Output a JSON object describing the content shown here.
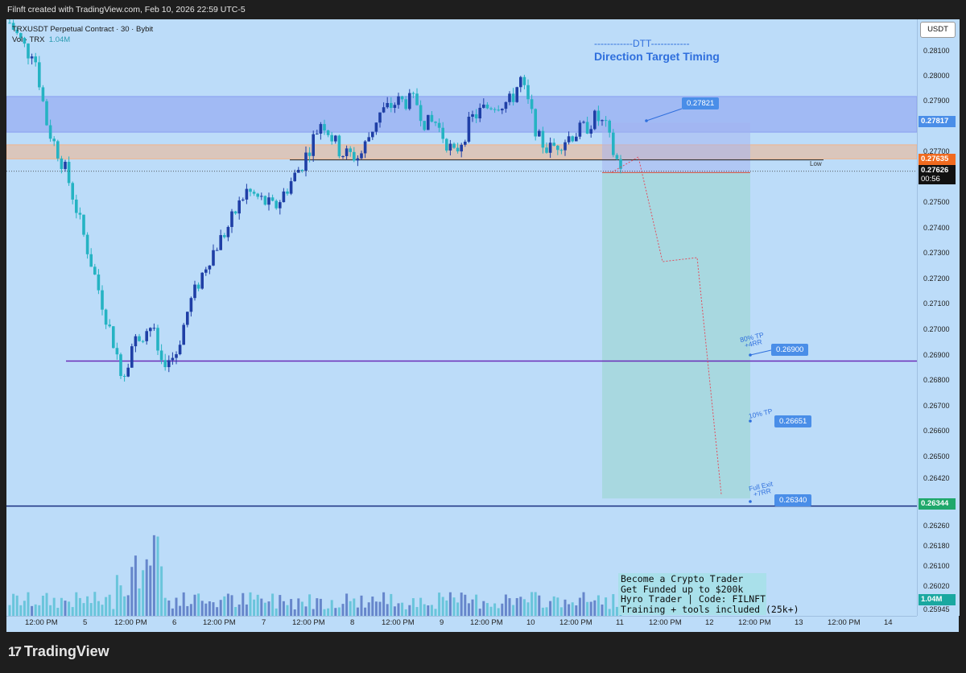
{
  "header": {
    "creator_text": "Filnft created with TradingView.com, Feb 10, 2026 22:59 UTC-5"
  },
  "legend": {
    "symbol_line": "TRXUSDT Perpetual Contract · 30 · Bybit",
    "vol_label": "Vol · TRX",
    "vol_value": "1.04M"
  },
  "dtt": {
    "line1": "------------DTT------------",
    "line2": "Direction Target Timing"
  },
  "promo": {
    "lines": [
      "Become a Crypto Trader",
      "Get Funded up to $200k",
      "Hyro Trader | Code: FILNFT",
      "Training + tools included (25k+)"
    ]
  },
  "annotations": {
    "low": "Low",
    "tp80": "80% TP",
    "tp80_rr": "+4RR",
    "tp10": "10% TP",
    "full_exit": "Full Exit",
    "full_exit_rr": "+7RR"
  },
  "targets": {
    "entry_tag": "0.27821",
    "tp80_tag": "0.26900",
    "tp10_tag": "0.26651",
    "exit_tag": "0.26340"
  },
  "price_axis": {
    "currency_button": "USDT",
    "ticks": [
      "0.28100",
      "0.28000",
      "0.27900",
      "0.27700",
      "0.27500",
      "0.27400",
      "0.27300",
      "0.27200",
      "0.27100",
      "0.27000",
      "0.26900",
      "0.26800",
      "0.26700",
      "0.26600",
      "0.26500",
      "0.26420",
      "0.26260",
      "0.26180",
      "0.26100",
      "0.26020",
      "0.25945"
    ],
    "labels": {
      "p1": "0.27817",
      "p2": "0.27635",
      "p3": "0.27626",
      "countdown": "00:56",
      "p4": "0.26344",
      "vol": "1.04M"
    }
  },
  "time_axis": {
    "ticks": [
      "12:00 PM",
      "5",
      "12:00 PM",
      "6",
      "12:00 PM",
      "7",
      "12:00 PM",
      "8",
      "12:00 PM",
      "9",
      "12:00 PM",
      "10",
      "12:00 PM",
      "11",
      "12:00 PM",
      "12",
      "12:00 PM",
      "13",
      "12:00 PM",
      "14"
    ]
  },
  "footer": {
    "brand": "TradingView"
  },
  "colors": {
    "background": "#bcdcf9",
    "bull": "#1f3fa6",
    "bear": "#25b3c3",
    "purple": "#6a2bb8",
    "navy": "#1a2f80",
    "tag_blue": "#4a8ee8",
    "orange": "#f06a1f"
  },
  "chart_data": {
    "type": "candlestick",
    "title": "TRXUSDT Perpetual Contract · 30 · Bybit",
    "xlabel": "",
    "ylabel": "USDT",
    "ylim": [
      0.25945,
      0.2818
    ],
    "timeframe": "30m",
    "x_range": [
      "Feb 4 12:00",
      "Feb 14"
    ],
    "path": [
      [
        0,
        0.2821
      ],
      [
        4,
        0.2809
      ],
      [
        5,
        0.2811
      ],
      [
        8,
        0.278
      ],
      [
        12,
        0.2762
      ],
      [
        20,
        0.2708
      ],
      [
        24,
        0.2682
      ],
      [
        26,
        0.2695
      ],
      [
        30,
        0.2702
      ],
      [
        32,
        0.2688
      ],
      [
        35,
        0.269
      ],
      [
        38,
        0.271
      ],
      [
        42,
        0.2728
      ],
      [
        46,
        0.274
      ],
      [
        50,
        0.2755
      ],
      [
        56,
        0.2748
      ],
      [
        58,
        0.2754
      ],
      [
        62,
        0.2766
      ],
      [
        66,
        0.2783
      ],
      [
        70,
        0.277
      ],
      [
        74,
        0.2768
      ],
      [
        78,
        0.2785
      ],
      [
        82,
        0.279
      ],
      [
        86,
        0.279
      ],
      [
        88,
        0.2781
      ],
      [
        90,
        0.2782
      ],
      [
        94,
        0.2769
      ],
      [
        98,
        0.2784
      ],
      [
        102,
        0.2789
      ],
      [
        106,
        0.279
      ],
      [
        108,
        0.2799
      ],
      [
        110,
        0.2787
      ],
      [
        112,
        0.2775
      ],
      [
        114,
        0.2771
      ],
      [
        118,
        0.2776
      ],
      [
        122,
        0.278
      ],
      [
        124,
        0.2784
      ],
      [
        126,
        0.278
      ],
      [
        128,
        0.2768
      ],
      [
        130,
        0.2763
      ]
    ],
    "zones": [
      {
        "name": "supply-zone",
        "from": 0.2778,
        "to": 0.2792,
        "color": "#8a9ff0"
      },
      {
        "name": "orange-zone",
        "from": 0.27675,
        "to": 0.2773,
        "color": "#f2b48a"
      }
    ],
    "levels": [
      {
        "name": "low-line",
        "price": 0.27671
      },
      {
        "name": "80% TP line",
        "price": 0.2688
      },
      {
        "name": "exit-line",
        "price": 0.2631
      }
    ],
    "position": {
      "type": "short",
      "entry": 0.27621,
      "stop": 0.27817,
      "targets": [
        0.269,
        0.26651,
        0.2634
      ],
      "stop_tag": "0.27821"
    },
    "volume": {
      "last": "1.04M"
    }
  }
}
